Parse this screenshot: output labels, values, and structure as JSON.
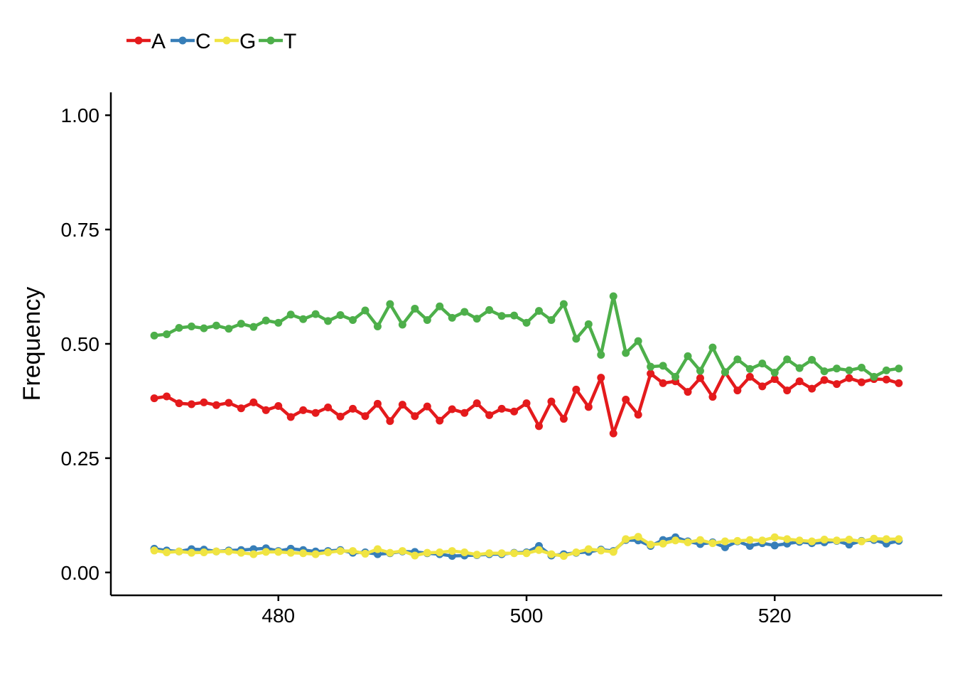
{
  "chart_data": {
    "type": "line",
    "xlabel": "",
    "ylabel": "Frequency",
    "xlim": [
      466.5,
      533.5
    ],
    "ylim": [
      -0.05,
      1.05
    ],
    "xticks": [
      480,
      500,
      520
    ],
    "xtick_labels": [
      "480",
      "500",
      "520"
    ],
    "yticks": [
      0,
      0.25,
      0.5,
      0.75,
      1
    ],
    "ytick_labels": [
      "0.00",
      "0.25",
      "0.50",
      "0.75",
      "1.00"
    ],
    "grid": false,
    "legend_position": "top-left",
    "x": [
      470,
      471,
      472,
      473,
      474,
      475,
      476,
      477,
      478,
      479,
      480,
      481,
      482,
      483,
      484,
      485,
      486,
      487,
      488,
      489,
      490,
      491,
      492,
      493,
      494,
      495,
      496,
      497,
      498,
      499,
      500,
      501,
      502,
      503,
      504,
      505,
      506,
      507,
      508,
      509,
      510,
      511,
      512,
      513,
      514,
      515,
      516,
      517,
      518,
      519,
      520,
      521,
      522,
      523,
      524,
      525,
      526,
      527,
      528,
      529,
      530
    ],
    "series": [
      {
        "name": "A",
        "color": "#e41a1c",
        "values": [
          0.381,
          0.385,
          0.37,
          0.368,
          0.372,
          0.366,
          0.371,
          0.359,
          0.372,
          0.355,
          0.364,
          0.34,
          0.355,
          0.349,
          0.361,
          0.341,
          0.358,
          0.342,
          0.369,
          0.331,
          0.367,
          0.342,
          0.363,
          0.332,
          0.357,
          0.349,
          0.37,
          0.344,
          0.358,
          0.352,
          0.37,
          0.32,
          0.374,
          0.336,
          0.4,
          0.362,
          0.426,
          0.304,
          0.378,
          0.345,
          0.435,
          0.414,
          0.418,
          0.395,
          0.425,
          0.384,
          0.438,
          0.398,
          0.428,
          0.407,
          0.423,
          0.398,
          0.418,
          0.402,
          0.421,
          0.412,
          0.425,
          0.416,
          0.423,
          0.422,
          0.414
        ]
      },
      {
        "name": "C",
        "color": "#377eb8",
        "values": [
          0.052,
          0.048,
          0.046,
          0.051,
          0.05,
          0.046,
          0.048,
          0.049,
          0.051,
          0.053,
          0.047,
          0.052,
          0.049,
          0.046,
          0.047,
          0.049,
          0.043,
          0.044,
          0.04,
          0.042,
          0.046,
          0.045,
          0.042,
          0.04,
          0.036,
          0.037,
          0.038,
          0.04,
          0.04,
          0.043,
          0.044,
          0.058,
          0.037,
          0.04,
          0.043,
          0.045,
          0.05,
          0.047,
          0.071,
          0.07,
          0.058,
          0.071,
          0.077,
          0.068,
          0.062,
          0.066,
          0.055,
          0.068,
          0.058,
          0.064,
          0.059,
          0.063,
          0.067,
          0.064,
          0.066,
          0.069,
          0.061,
          0.069,
          0.071,
          0.063,
          0.069
        ]
      },
      {
        "name": "G",
        "color": "#f0e442",
        "values": [
          0.048,
          0.044,
          0.046,
          0.043,
          0.044,
          0.046,
          0.046,
          0.043,
          0.04,
          0.045,
          0.045,
          0.043,
          0.042,
          0.04,
          0.044,
          0.047,
          0.047,
          0.041,
          0.051,
          0.043,
          0.047,
          0.037,
          0.043,
          0.044,
          0.047,
          0.044,
          0.039,
          0.042,
          0.042,
          0.042,
          0.042,
          0.049,
          0.04,
          0.036,
          0.044,
          0.051,
          0.048,
          0.045,
          0.073,
          0.078,
          0.061,
          0.063,
          0.07,
          0.066,
          0.071,
          0.064,
          0.068,
          0.069,
          0.071,
          0.07,
          0.077,
          0.073,
          0.07,
          0.068,
          0.072,
          0.07,
          0.072,
          0.068,
          0.074,
          0.073,
          0.073
        ]
      },
      {
        "name": "T",
        "color": "#4daf4a",
        "values": [
          0.518,
          0.521,
          0.535,
          0.538,
          0.534,
          0.54,
          0.533,
          0.544,
          0.537,
          0.551,
          0.546,
          0.564,
          0.554,
          0.565,
          0.55,
          0.563,
          0.552,
          0.573,
          0.538,
          0.587,
          0.542,
          0.577,
          0.552,
          0.582,
          0.557,
          0.57,
          0.555,
          0.574,
          0.561,
          0.562,
          0.546,
          0.572,
          0.552,
          0.587,
          0.511,
          0.543,
          0.476,
          0.604,
          0.48,
          0.506,
          0.45,
          0.452,
          0.428,
          0.473,
          0.441,
          0.492,
          0.438,
          0.466,
          0.445,
          0.457,
          0.437,
          0.466,
          0.447,
          0.465,
          0.44,
          0.446,
          0.442,
          0.448,
          0.428,
          0.442,
          0.446
        ]
      }
    ]
  }
}
